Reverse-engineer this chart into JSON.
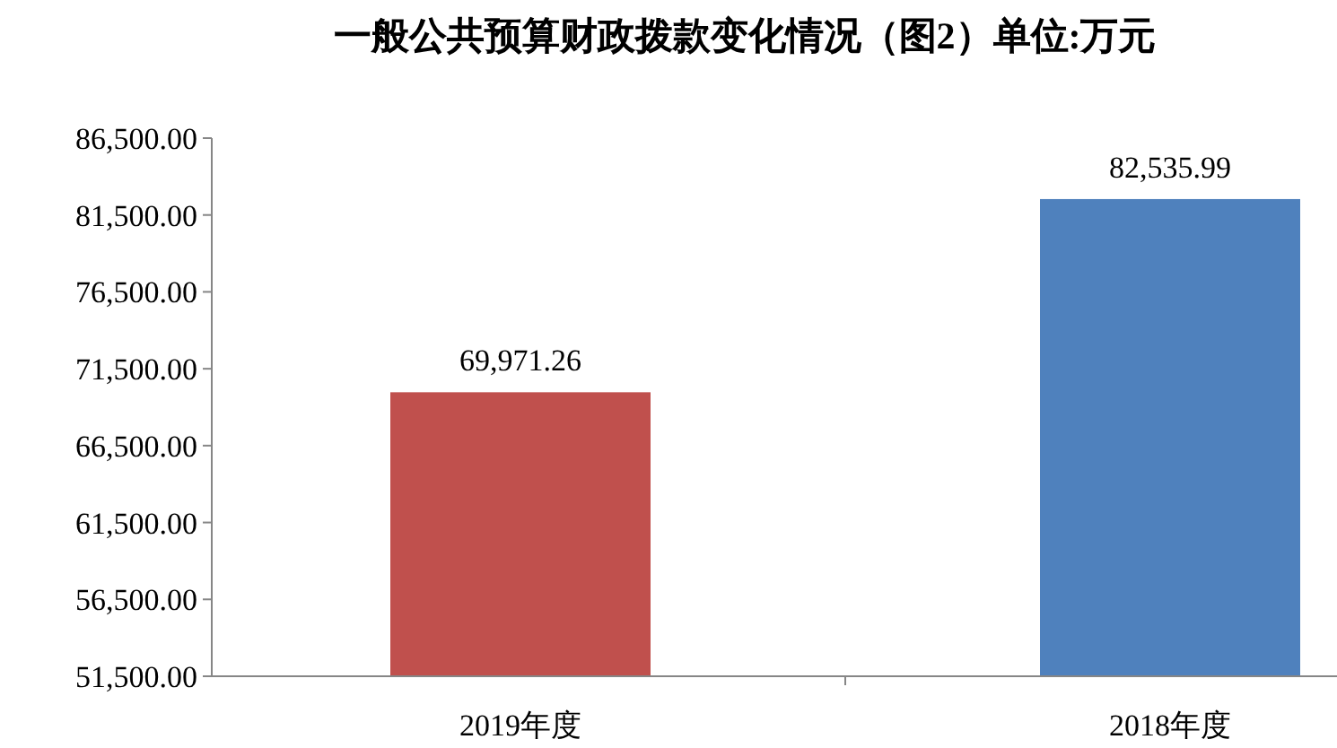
{
  "chart_data": {
    "type": "bar",
    "title": "一般公共预算财政拨款变化情况（图2）单位:万元",
    "categories": [
      "2019年度",
      "2018年度"
    ],
    "values": [
      69971.26,
      82535.99
    ],
    "colors": [
      "#c0504d",
      "#4f81bd"
    ],
    "value_labels": [
      "69,971.26",
      "82,535.99"
    ],
    "ylim": [
      51500,
      86500
    ],
    "yticks": [
      {
        "value": 51500,
        "label": "51,500.00"
      },
      {
        "value": 56500,
        "label": "56,500.00"
      },
      {
        "value": 61500,
        "label": "61,500.00"
      },
      {
        "value": 66500,
        "label": "66,500.00"
      },
      {
        "value": 71500,
        "label": "71,500.00"
      },
      {
        "value": 76500,
        "label": "76,500.00"
      },
      {
        "value": 81500,
        "label": "81,500.00"
      },
      {
        "value": 86500,
        "label": "86,500.00"
      }
    ],
    "grid": false
  }
}
